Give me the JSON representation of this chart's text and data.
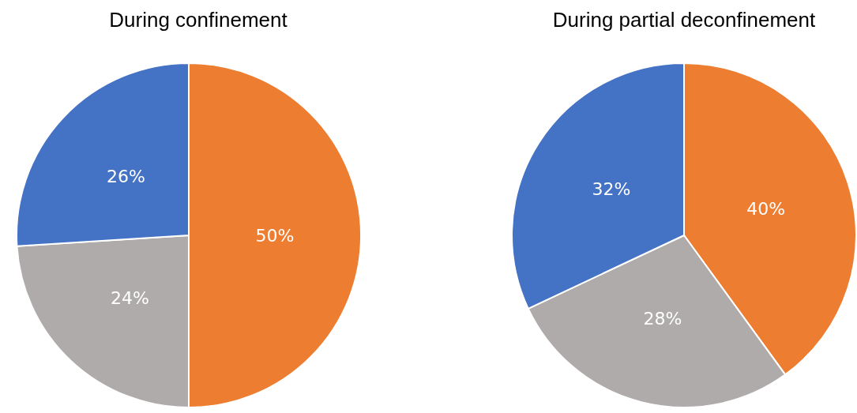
{
  "chart_data": [
    {
      "type": "pie",
      "title": "During confinement",
      "categories": [
        null,
        null,
        null
      ],
      "values": [
        50,
        24,
        26
      ],
      "colors": [
        "#ed7d31",
        "#afabab",
        "#4472c4"
      ],
      "value_labels": [
        "50%",
        "24%",
        "26%"
      ]
    },
    {
      "type": "pie",
      "title": "During partial deconfinement",
      "categories": [
        null,
        null,
        null
      ],
      "values": [
        40,
        28,
        32
      ],
      "colors": [
        "#ed7d31",
        "#afabab",
        "#4472c4"
      ],
      "value_labels": [
        "40%",
        "28%",
        "32%"
      ]
    }
  ]
}
